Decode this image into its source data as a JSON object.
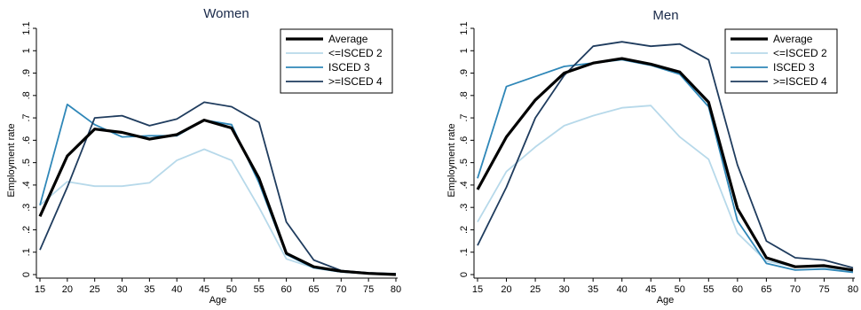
{
  "chart_data": [
    {
      "type": "line",
      "title": "Women",
      "xlabel": "Age",
      "ylabel": "Employment rate",
      "x": [
        15,
        20,
        25,
        30,
        35,
        40,
        45,
        50,
        55,
        60,
        65,
        70,
        75,
        80
      ],
      "x_ticks": [
        "15",
        "20",
        "25",
        "30",
        "35",
        "40",
        "45",
        "50",
        "55",
        "60",
        "65",
        "70",
        "75",
        "80"
      ],
      "y_ticks": [
        "0",
        ".1",
        ".2",
        ".3",
        ".4",
        ".5",
        ".6",
        ".7",
        ".8",
        ".9",
        "1",
        "1.1"
      ],
      "xlim": [
        15,
        80
      ],
      "ylim": [
        0,
        1.1
      ],
      "grid": false,
      "legend_position": "top-right",
      "series": [
        {
          "name": "Average",
          "color": "#000000",
          "values": [
            0.26,
            0.53,
            0.65,
            0.635,
            0.605,
            0.625,
            0.69,
            0.655,
            0.43,
            0.095,
            0.035,
            0.015,
            0.005,
            0.0
          ]
        },
        {
          "name": "<=ISCED 2",
          "color": "#b7d9ea",
          "values": [
            0.31,
            0.415,
            0.395,
            0.395,
            0.41,
            0.51,
            0.56,
            0.51,
            0.3,
            0.07,
            0.03,
            0.012,
            0.004,
            0.0
          ]
        },
        {
          "name": "ISCED 3",
          "color": "#2f87b8",
          "values": [
            0.31,
            0.76,
            0.67,
            0.615,
            0.62,
            0.62,
            0.69,
            0.67,
            0.41,
            0.09,
            0.03,
            0.012,
            0.004,
            0.0
          ]
        },
        {
          "name": ">=ISCED 4",
          "color": "#1f3c5e",
          "values": [
            0.11,
            0.39,
            0.7,
            0.71,
            0.665,
            0.695,
            0.77,
            0.75,
            0.68,
            0.235,
            0.065,
            0.018,
            0.008,
            0.004
          ]
        }
      ]
    },
    {
      "type": "line",
      "title": "Men",
      "xlabel": "Age",
      "ylabel": "Employment rate",
      "x": [
        15,
        20,
        25,
        30,
        35,
        40,
        45,
        50,
        55,
        60,
        65,
        70,
        75,
        80
      ],
      "x_ticks": [
        "15",
        "20",
        "25",
        "30",
        "35",
        "40",
        "45",
        "50",
        "55",
        "60",
        "65",
        "70",
        "75",
        "80"
      ],
      "y_ticks": [
        "0",
        ".1",
        ".2",
        ".3",
        ".4",
        ".5",
        ".6",
        ".7",
        ".8",
        ".9",
        "1",
        "1.1"
      ],
      "xlim": [
        15,
        80
      ],
      "ylim": [
        0,
        1.1
      ],
      "grid": false,
      "legend_position": "top-right",
      "series": [
        {
          "name": "Average",
          "color": "#000000",
          "values": [
            0.38,
            0.615,
            0.78,
            0.9,
            0.945,
            0.965,
            0.94,
            0.905,
            0.77,
            0.295,
            0.075,
            0.035,
            0.04,
            0.02
          ]
        },
        {
          "name": "<=ISCED 2",
          "color": "#b7d9ea",
          "values": [
            0.235,
            0.46,
            0.57,
            0.665,
            0.71,
            0.745,
            0.755,
            0.615,
            0.515,
            0.185,
            0.06,
            0.035,
            0.035,
            0.015
          ]
        },
        {
          "name": "ISCED 3",
          "color": "#2f87b8",
          "values": [
            0.43,
            0.84,
            0.885,
            0.93,
            0.945,
            0.96,
            0.935,
            0.895,
            0.75,
            0.24,
            0.05,
            0.02,
            0.025,
            0.01
          ]
        },
        {
          "name": ">=ISCED 4",
          "color": "#1f3c5e",
          "values": [
            0.13,
            0.39,
            0.7,
            0.89,
            1.02,
            1.04,
            1.02,
            1.03,
            0.96,
            0.49,
            0.15,
            0.075,
            0.065,
            0.03
          ]
        }
      ]
    }
  ]
}
